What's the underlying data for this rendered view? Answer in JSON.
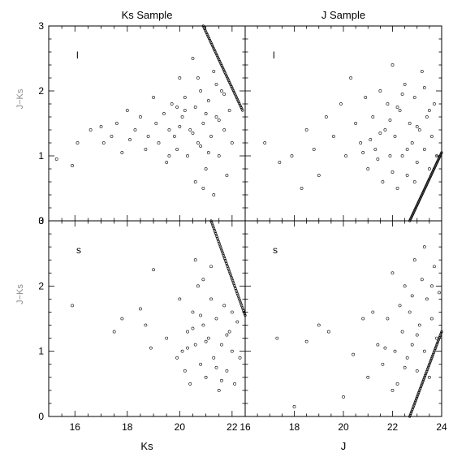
{
  "chart_data": [
    {
      "type": "scatter",
      "title": "Ks Sample",
      "panel_label": "l",
      "xlabel": "",
      "ylabel": "J−Ks",
      "xlim": [
        15,
        22.5
      ],
      "ylim": [
        0,
        3
      ],
      "xticks": [],
      "yticks": [
        "0",
        "1",
        "2",
        "3"
      ],
      "points": [
        [
          15.3,
          0.95
        ],
        [
          15.9,
          0.85
        ],
        [
          16.1,
          1.2
        ],
        [
          16.6,
          1.4
        ],
        [
          17,
          1.45
        ],
        [
          17.1,
          1.2
        ],
        [
          17.4,
          1.3
        ],
        [
          17.6,
          1.5
        ],
        [
          17.8,
          1.05
        ],
        [
          18.0,
          1.7
        ],
        [
          18.1,
          1.25
        ],
        [
          18.3,
          1.4
        ],
        [
          18.5,
          1.6
        ],
        [
          18.7,
          1.1
        ],
        [
          18.8,
          1.3
        ],
        [
          19.0,
          1.9
        ],
        [
          19.1,
          1.5
        ],
        [
          19.2,
          1.2
        ],
        [
          19.4,
          1.65
        ],
        [
          19.5,
          0.9
        ],
        [
          19.6,
          1.4
        ],
        [
          19.7,
          1.8
        ],
        [
          19.8,
          1.3
        ],
        [
          19.9,
          1.1
        ],
        [
          20.0,
          2.2
        ],
        [
          20.1,
          1.6
        ],
        [
          20.2,
          1.9
        ],
        [
          20.3,
          1.0
        ],
        [
          20.4,
          1.4
        ],
        [
          20.5,
          2.5
        ],
        [
          20.6,
          1.75
        ],
        [
          20.7,
          1.2
        ],
        [
          20.8,
          2.0
        ],
        [
          20.9,
          1.5
        ],
        [
          21.0,
          0.8
        ],
        [
          21.1,
          1.85
        ],
        [
          21.2,
          1.3
        ],
        [
          21.3,
          2.3
        ],
        [
          21.4,
          1.6
        ],
        [
          21.5,
          1.0
        ],
        [
          21.6,
          2.0
        ],
        [
          21.7,
          1.4
        ],
        [
          21.8,
          0.7
        ],
        [
          21.9,
          1.7
        ],
        [
          22.0,
          1.2
        ],
        [
          20.6,
          0.6
        ],
        [
          20.9,
          0.5
        ],
        [
          21.3,
          0.4
        ],
        [
          20.2,
          1.7
        ],
        [
          19.9,
          1.75
        ],
        [
          20.5,
          1.35
        ],
        [
          20.8,
          1.15
        ],
        [
          21.1,
          1.05
        ],
        [
          21.5,
          1.55
        ],
        [
          21.7,
          1.95
        ],
        [
          20.0,
          1.45
        ],
        [
          19.6,
          1.0
        ],
        [
          20.7,
          2.2
        ],
        [
          21.4,
          2.1
        ],
        [
          21.0,
          1.65
        ]
      ],
      "line": [
        [
          20.9,
          3.0
        ],
        [
          22.4,
          1.7
        ]
      ]
    },
    {
      "type": "scatter",
      "title": "J Sample",
      "panel_label": "l",
      "xlabel": "",
      "ylabel": "",
      "xlim": [
        16,
        24
      ],
      "ylim": [
        0,
        3
      ],
      "xticks": [],
      "yticks": [],
      "points": [
        [
          16.8,
          1.2
        ],
        [
          17.4,
          0.9
        ],
        [
          17.9,
          1.0
        ],
        [
          18.3,
          0.5
        ],
        [
          18.5,
          1.4
        ],
        [
          18.8,
          1.1
        ],
        [
          19.0,
          0.7
        ],
        [
          19.3,
          1.6
        ],
        [
          19.6,
          1.3
        ],
        [
          19.9,
          1.8
        ],
        [
          20.1,
          1.0
        ],
        [
          20.3,
          2.2
        ],
        [
          20.5,
          1.5
        ],
        [
          20.7,
          1.2
        ],
        [
          20.9,
          1.9
        ],
        [
          21.0,
          0.8
        ],
        [
          21.2,
          1.6
        ],
        [
          21.3,
          1.1
        ],
        [
          21.5,
          2.0
        ],
        [
          21.6,
          0.6
        ],
        [
          21.7,
          1.4
        ],
        [
          21.8,
          1.8
        ],
        [
          21.9,
          1.0
        ],
        [
          22.0,
          2.4
        ],
        [
          22.1,
          1.3
        ],
        [
          22.2,
          0.5
        ],
        [
          22.3,
          1.7
        ],
        [
          22.4,
          1.0
        ],
        [
          22.5,
          2.1
        ],
        [
          22.6,
          0.7
        ],
        [
          22.7,
          1.5
        ],
        [
          22.8,
          1.2
        ],
        [
          22.9,
          1.9
        ],
        [
          23.0,
          0.9
        ],
        [
          23.1,
          1.4
        ],
        [
          23.2,
          2.3
        ],
        [
          23.3,
          1.1
        ],
        [
          23.4,
          1.6
        ],
        [
          23.5,
          0.8
        ],
        [
          23.6,
          1.3
        ],
        [
          23.7,
          1.8
        ],
        [
          23.8,
          1.0
        ],
        [
          21.1,
          1.25
        ],
        [
          21.4,
          0.95
        ],
        [
          21.9,
          1.55
        ],
        [
          22.2,
          1.75
        ],
        [
          22.6,
          1.1
        ],
        [
          23.0,
          1.45
        ],
        [
          23.3,
          2.05
        ],
        [
          22.0,
          0.75
        ],
        [
          20.8,
          1.05
        ],
        [
          21.5,
          1.35
        ],
        [
          22.4,
          1.95
        ],
        [
          22.9,
          0.6
        ],
        [
          23.5,
          1.7
        ]
      ],
      "line": [
        [
          22.7,
          0.0
        ],
        [
          24.0,
          1.05
        ]
      ]
    },
    {
      "type": "scatter",
      "title": "",
      "panel_label": "s",
      "xlabel": "Ks",
      "ylabel": "J−Ks",
      "xlim": [
        15,
        22.5
      ],
      "ylim": [
        0,
        3
      ],
      "xticks": [
        "16",
        "18",
        "20",
        "22"
      ],
      "yticks": [
        "0",
        "1",
        "2",
        "3"
      ],
      "points": [
        [
          15.9,
          1.7
        ],
        [
          17.5,
          1.3
        ],
        [
          17.8,
          1.5
        ],
        [
          18.5,
          1.65
        ],
        [
          18.7,
          1.4
        ],
        [
          18.9,
          1.05
        ],
        [
          19.0,
          2.25
        ],
        [
          19.5,
          1.2
        ],
        [
          19.9,
          0.9
        ],
        [
          20.0,
          1.8
        ],
        [
          20.1,
          1.0
        ],
        [
          20.2,
          0.7
        ],
        [
          20.3,
          1.3
        ],
        [
          20.4,
          0.5
        ],
        [
          20.5,
          1.6
        ],
        [
          20.6,
          1.1
        ],
        [
          20.7,
          2.0
        ],
        [
          20.8,
          0.8
        ],
        [
          20.9,
          1.4
        ],
        [
          21.0,
          0.6
        ],
        [
          21.1,
          1.2
        ],
        [
          21.2,
          1.8
        ],
        [
          21.3,
          0.9
        ],
        [
          21.4,
          1.5
        ],
        [
          21.5,
          0.4
        ],
        [
          21.6,
          1.1
        ],
        [
          21.7,
          1.7
        ],
        [
          21.8,
          0.7
        ],
        [
          21.9,
          1.3
        ],
        [
          22.0,
          1.0
        ],
        [
          22.1,
          0.5
        ],
        [
          22.2,
          1.45
        ],
        [
          22.3,
          0.9
        ],
        [
          20.6,
          2.4
        ],
        [
          20.9,
          2.1
        ],
        [
          21.2,
          2.3
        ],
        [
          20.5,
          1.35
        ],
        [
          21.0,
          1.15
        ],
        [
          21.4,
          0.75
        ],
        [
          21.8,
          1.25
        ],
        [
          20.3,
          1.05
        ],
        [
          20.8,
          1.55
        ],
        [
          21.6,
          0.55
        ],
        [
          22.0,
          1.6
        ]
      ],
      "line": [
        [
          21.2,
          3.0
        ],
        [
          22.5,
          1.55
        ]
      ]
    },
    {
      "type": "scatter",
      "title": "",
      "panel_label": "s",
      "xlabel": "J",
      "ylabel": "",
      "xlim": [
        16,
        24
      ],
      "ylim": [
        0,
        3
      ],
      "xticks": [
        "16",
        "18",
        "20",
        "22",
        "24"
      ],
      "yticks": [],
      "points": [
        [
          17.3,
          1.2
        ],
        [
          18.0,
          0.15
        ],
        [
          18.5,
          1.15
        ],
        [
          19.0,
          1.4
        ],
        [
          19.4,
          1.3
        ],
        [
          20.0,
          0.3
        ],
        [
          20.4,
          0.95
        ],
        [
          20.8,
          1.5
        ],
        [
          21.0,
          0.6
        ],
        [
          21.2,
          1.6
        ],
        [
          21.4,
          1.1
        ],
        [
          21.6,
          0.8
        ],
        [
          21.8,
          1.5
        ],
        [
          22.0,
          2.2
        ],
        [
          22.1,
          1.0
        ],
        [
          22.2,
          0.5
        ],
        [
          22.3,
          1.7
        ],
        [
          22.4,
          1.3
        ],
        [
          22.5,
          2.0
        ],
        [
          22.6,
          0.9
        ],
        [
          22.7,
          1.6
        ],
        [
          22.8,
          1.1
        ],
        [
          22.9,
          2.4
        ],
        [
          23.0,
          0.7
        ],
        [
          23.1,
          1.4
        ],
        [
          23.2,
          2.1
        ],
        [
          23.3,
          1.0
        ],
        [
          23.4,
          1.8
        ],
        [
          23.5,
          0.6
        ],
        [
          23.6,
          1.5
        ],
        [
          23.7,
          2.3
        ],
        [
          23.8,
          1.2
        ],
        [
          23.9,
          1.9
        ],
        [
          22.0,
          0.4
        ],
        [
          22.5,
          0.75
        ],
        [
          23.0,
          1.25
        ],
        [
          23.3,
          2.6
        ],
        [
          23.6,
          2.0
        ],
        [
          21.7,
          1.05
        ],
        [
          22.8,
          1.85
        ]
      ],
      "line": [
        [
          22.7,
          0.0
        ],
        [
          24.0,
          1.3
        ]
      ]
    }
  ]
}
